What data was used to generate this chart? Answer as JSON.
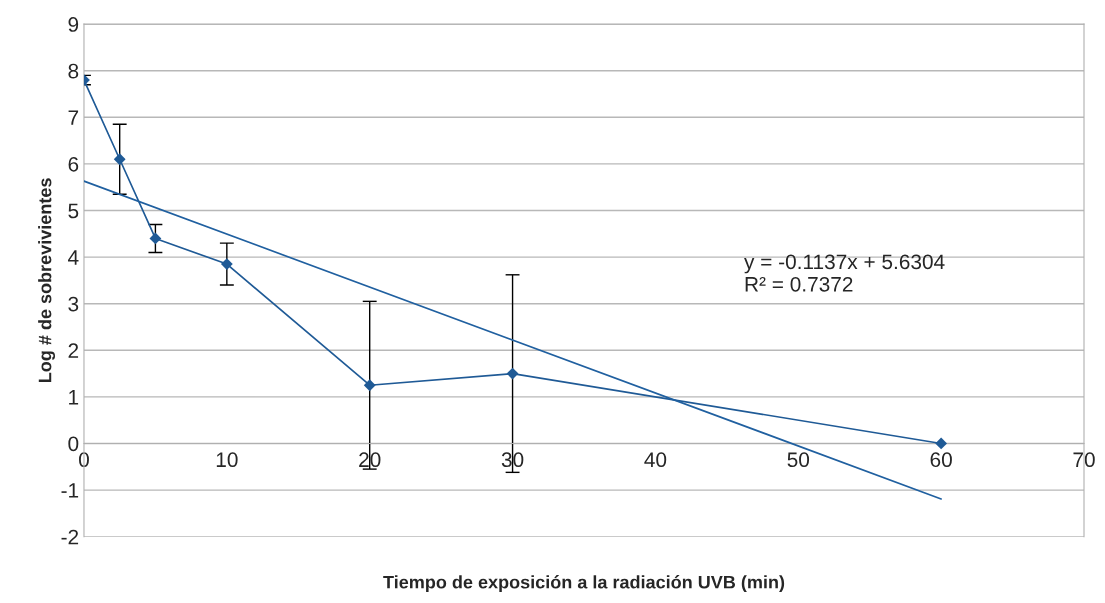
{
  "chart_data": {
    "type": "line",
    "xlabel": "Tiempo de exposición a la radiación UVB (min)",
    "ylabel": "Log # de sobrevivientes",
    "xlim": [
      0,
      70
    ],
    "xticks": [
      0,
      10,
      20,
      30,
      40,
      50,
      60,
      70
    ],
    "ylim": [
      -2,
      9
    ],
    "yticks": [
      -2,
      -1,
      0,
      1,
      2,
      3,
      4,
      5,
      6,
      7,
      8,
      9
    ],
    "grid": "y",
    "marker": "diamond",
    "line_style": "solid",
    "series": [
      {
        "color": "#1f5a96",
        "x": [
          0,
          2.5,
          5,
          10,
          20,
          30,
          60
        ],
        "values": [
          7.8,
          6.1,
          4.4,
          3.85,
          1.25,
          1.5,
          0
        ],
        "errors": [
          0.1,
          0.75,
          0.3,
          0.45,
          1.8,
          2.12,
          null
        ]
      },
      {
        "type": "line",
        "color": "#2060a0",
        "marker": "none",
        "x": [
          0,
          60
        ],
        "values": [
          5.63,
          -1.19
        ]
      }
    ],
    "annotations": [
      "y = -0.1137x + 5.6304\nR² = 0.7372"
    ]
  }
}
